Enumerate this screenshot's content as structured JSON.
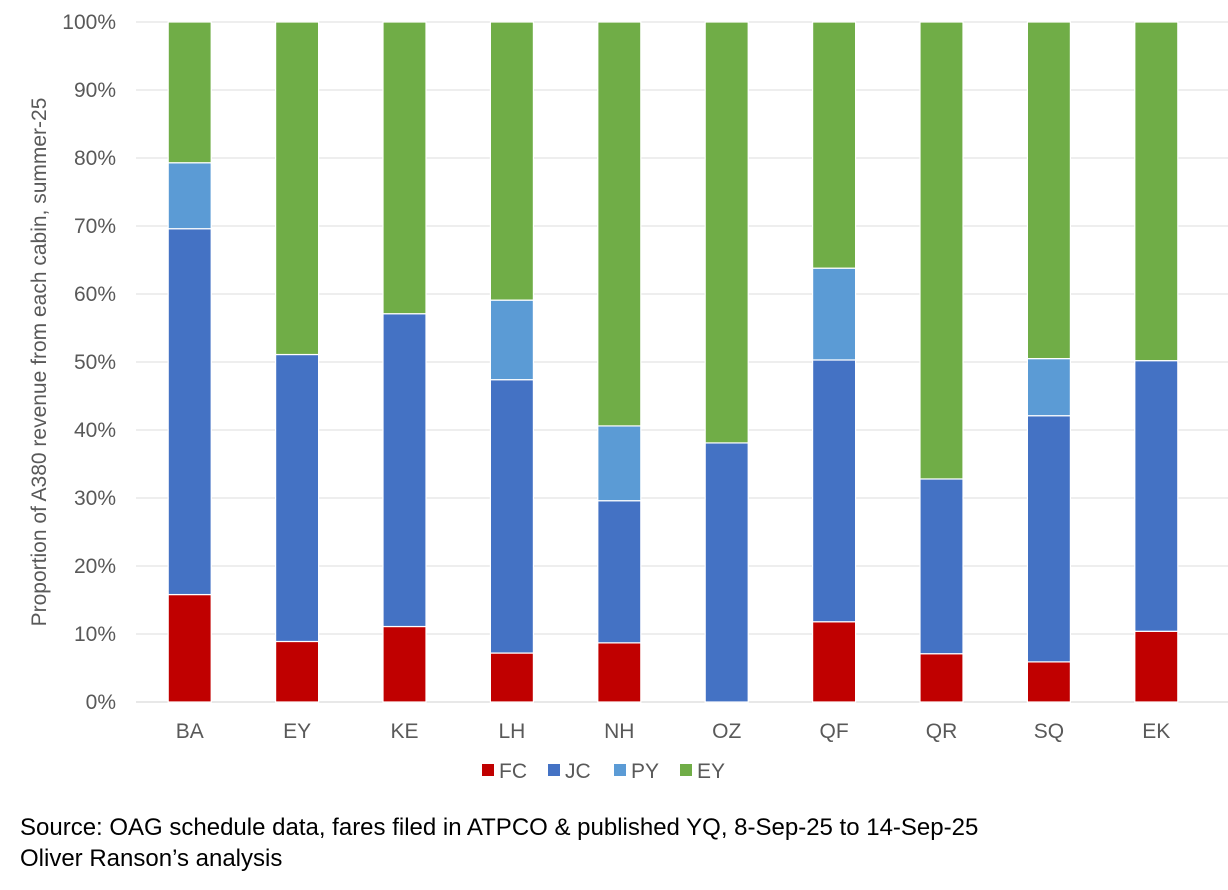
{
  "chart_data": {
    "type": "bar",
    "stacked": true,
    "title": "",
    "xlabel": "",
    "ylabel": "Proportion of A380 revenue from each cabin, summer-25",
    "ylim": [
      0,
      100
    ],
    "yticks": [
      "0%",
      "10%",
      "20%",
      "30%",
      "40%",
      "50%",
      "60%",
      "70%",
      "80%",
      "90%",
      "100%"
    ],
    "grid": true,
    "legend_position": "bottom",
    "categories": [
      "BA",
      "EY",
      "KE",
      "LH",
      "NH",
      "OZ",
      "QF",
      "QR",
      "SQ",
      "EK"
    ],
    "series": [
      {
        "name": "FC",
        "color": "#C00000",
        "values": [
          15.8,
          8.9,
          11.1,
          7.2,
          8.7,
          0.0,
          11.8,
          7.1,
          5.9,
          10.4
        ]
      },
      {
        "name": "JC",
        "color": "#4472C4",
        "values": [
          53.8,
          42.2,
          46.0,
          40.2,
          20.9,
          38.1,
          38.5,
          25.7,
          36.2,
          39.8
        ]
      },
      {
        "name": "PY",
        "color": "#5B9BD5",
        "values": [
          9.7,
          0.0,
          0.0,
          11.7,
          11.0,
          0.0,
          13.5,
          0.0,
          8.4,
          0.0
        ]
      },
      {
        "name": "EY",
        "color": "#70AD47",
        "values": [
          20.7,
          48.9,
          42.9,
          40.9,
          59.4,
          61.9,
          36.2,
          67.2,
          49.5,
          49.8
        ]
      }
    ]
  },
  "source": {
    "line1": "Source: OAG schedule data, fares filed in ATPCO & published YQ, 8-Sep-25 to 14-Sep-25",
    "line2": "Oliver Ranson’s analysis"
  }
}
